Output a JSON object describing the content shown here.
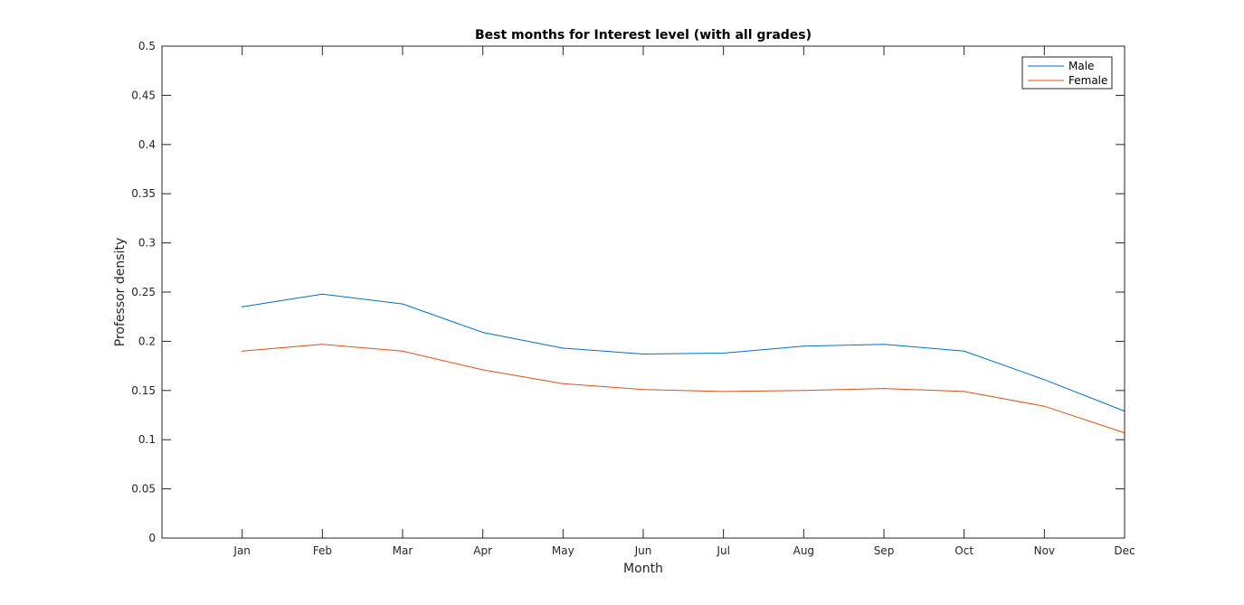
{
  "chart_data": {
    "type": "line",
    "title": "Best months for Interest level (with all grades)",
    "xlabel": "Month",
    "ylabel": "Professor density",
    "categories": [
      "Jan",
      "Feb",
      "Mar",
      "Apr",
      "May",
      "Jun",
      "Jul",
      "Aug",
      "Sep",
      "Oct",
      "Nov",
      "Dec"
    ],
    "xlim": [
      0,
      12
    ],
    "ylim": [
      0,
      0.5
    ],
    "yticks": [
      "0",
      "0.05",
      "0.1",
      "0.15",
      "0.2",
      "0.25",
      "0.3",
      "0.35",
      "0.4",
      "0.45",
      "0.5"
    ],
    "grid": false,
    "legend_position": "top-right",
    "series": [
      {
        "name": "Male",
        "color": "#0072BD",
        "values": [
          0.235,
          0.248,
          0.238,
          0.209,
          0.193,
          0.187,
          0.188,
          0.195,
          0.197,
          0.19,
          0.161,
          0.129
        ]
      },
      {
        "name": "Female",
        "color": "#D95319",
        "values": [
          0.19,
          0.197,
          0.19,
          0.171,
          0.157,
          0.151,
          0.149,
          0.15,
          0.152,
          0.149,
          0.134,
          0.107
        ]
      }
    ]
  }
}
